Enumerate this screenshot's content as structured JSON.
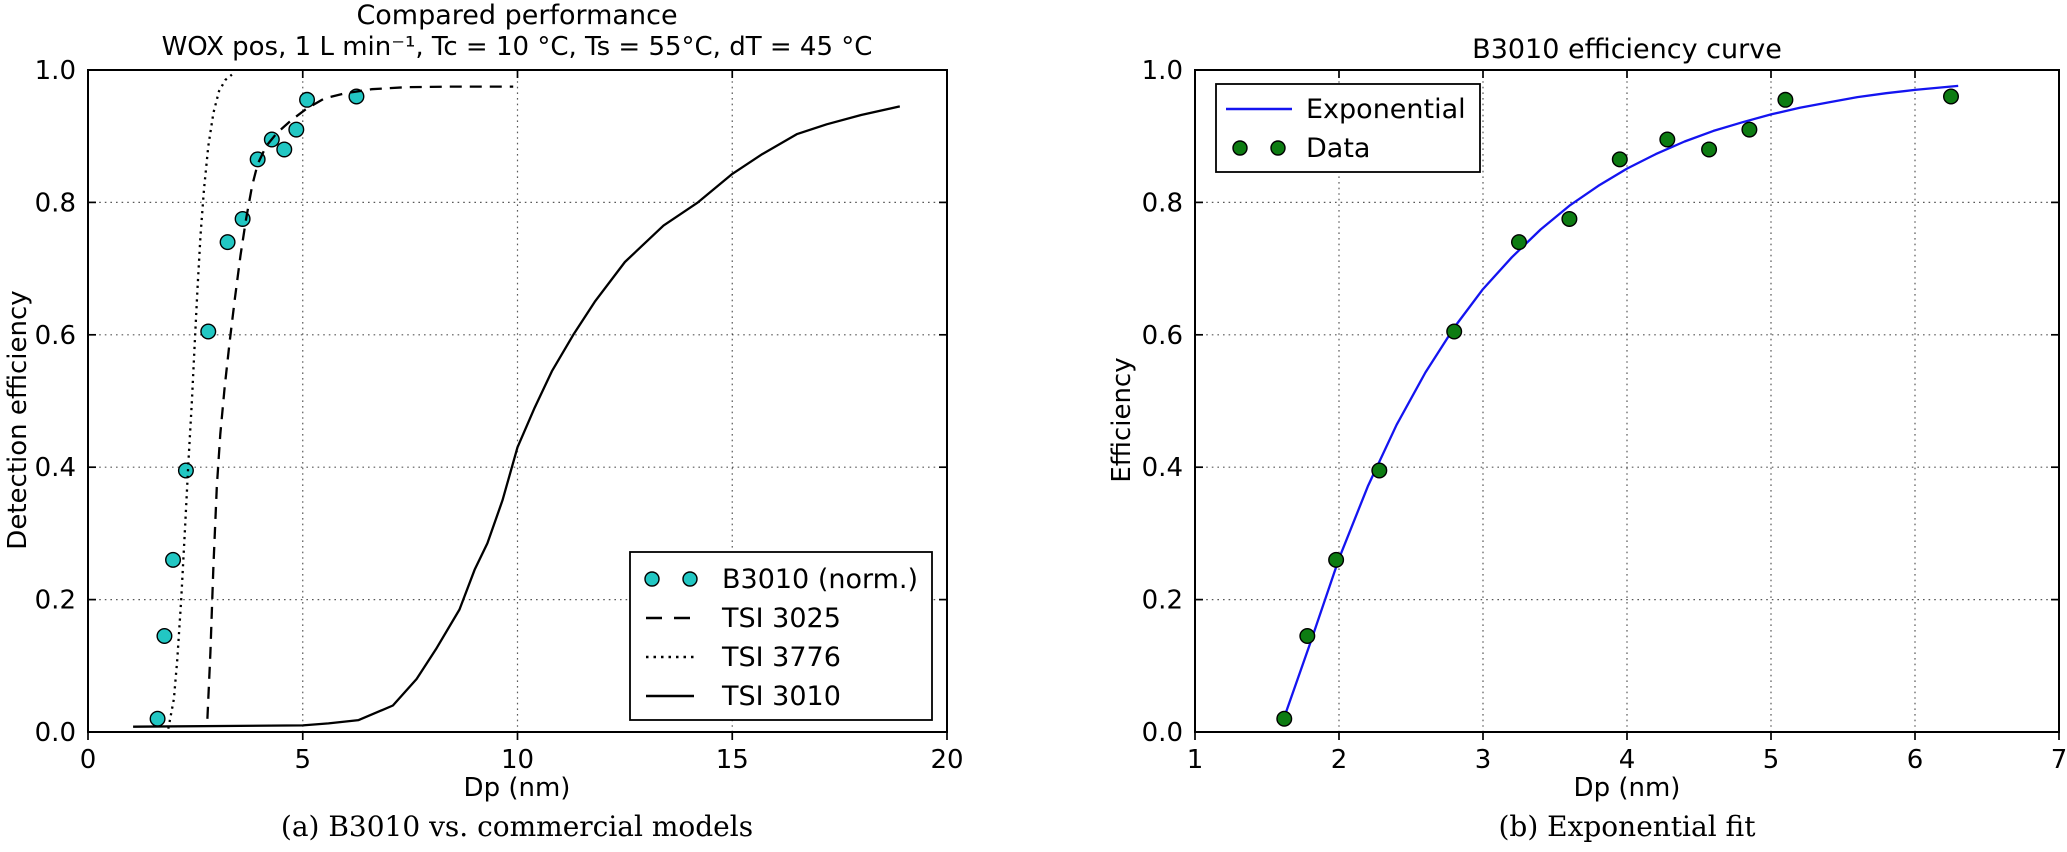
{
  "page": {
    "background": "#ffffff"
  },
  "colors": {
    "cyan": "#22c7c3",
    "green": "#0d7c12",
    "blue": "#1414f0",
    "black": "#000000",
    "grid": "#000000",
    "marker_edge": "#000000",
    "legend_bg": "#ffffff"
  },
  "chart_data": [
    {
      "type": "scatter+line",
      "title": "Compared performance",
      "subtitle": "WOX pos, 1 L min⁻¹, Tc = 10 °C, Ts = 55°C, dT = 45 °C",
      "xlabel": "Dp (nm)",
      "ylabel": "Detection efficiency",
      "caption": "(a) B3010 vs. commercial models",
      "xlim": [
        0,
        20
      ],
      "ylim": [
        0,
        1
      ],
      "xticks": [
        0,
        5,
        10,
        15,
        20
      ],
      "yticks": [
        0.0,
        0.2,
        0.4,
        0.6,
        0.8,
        1.0
      ],
      "xtick_decimals": 0,
      "ytick_decimals": 1,
      "grid": true,
      "legend_position": "lower right",
      "series": [
        {
          "name": "B3010 (norm.)",
          "type": "scatter",
          "color_key": "cyan",
          "x": [
            1.62,
            1.78,
            1.98,
            2.28,
            2.8,
            3.25,
            3.6,
            3.95,
            4.28,
            4.57,
            4.85,
            5.1,
            6.25
          ],
          "y": [
            0.02,
            0.145,
            0.26,
            0.395,
            0.605,
            0.74,
            0.775,
            0.865,
            0.895,
            0.88,
            0.91,
            0.955,
            0.96
          ]
        },
        {
          "name": "TSI 3025",
          "type": "line",
          "linestyle": "dashed",
          "color_key": "black",
          "points": [
            [
              2.78,
              0.02
            ],
            [
              2.85,
              0.12
            ],
            [
              2.92,
              0.25
            ],
            [
              3.0,
              0.37
            ],
            [
              3.08,
              0.45
            ],
            [
              3.18,
              0.52
            ],
            [
              3.3,
              0.59
            ],
            [
              3.42,
              0.655
            ],
            [
              3.55,
              0.72
            ],
            [
              3.68,
              0.775
            ],
            [
              3.82,
              0.825
            ],
            [
              3.95,
              0.858
            ],
            [
              4.15,
              0.885
            ],
            [
              4.4,
              0.905
            ],
            [
              4.75,
              0.925
            ],
            [
              5.1,
              0.942
            ],
            [
              5.5,
              0.957
            ],
            [
              6.0,
              0.965
            ],
            [
              6.6,
              0.971
            ],
            [
              7.4,
              0.974
            ],
            [
              8.5,
              0.975
            ],
            [
              9.9,
              0.975
            ]
          ]
        },
        {
          "name": "TSI 3776",
          "type": "line",
          "linestyle": "dotted",
          "color_key": "black",
          "points": [
            [
              1.87,
              0.005
            ],
            [
              2.0,
              0.05
            ],
            [
              2.08,
              0.11
            ],
            [
              2.17,
              0.2
            ],
            [
              2.26,
              0.31
            ],
            [
              2.34,
              0.41
            ],
            [
              2.42,
              0.5
            ],
            [
              2.48,
              0.58
            ],
            [
              2.55,
              0.67
            ],
            [
              2.62,
              0.75
            ],
            [
              2.7,
              0.82
            ],
            [
              2.8,
              0.885
            ],
            [
              2.92,
              0.935
            ],
            [
              3.05,
              0.968
            ],
            [
              3.2,
              0.985
            ],
            [
              3.35,
              0.993
            ]
          ]
        },
        {
          "name": "TSI 3010",
          "type": "line",
          "linestyle": "solid",
          "color_key": "black",
          "points": [
            [
              1.05,
              0.008
            ],
            [
              5.0,
              0.01
            ],
            [
              5.6,
              0.013
            ],
            [
              6.3,
              0.018
            ],
            [
              7.1,
              0.04
            ],
            [
              7.65,
              0.08
            ],
            [
              8.1,
              0.125
            ],
            [
              8.65,
              0.185
            ],
            [
              9.0,
              0.245
            ],
            [
              9.3,
              0.285
            ],
            [
              9.65,
              0.35
            ],
            [
              10.0,
              0.43
            ],
            [
              10.4,
              0.49
            ],
            [
              10.8,
              0.545
            ],
            [
              11.3,
              0.6
            ],
            [
              11.8,
              0.65
            ],
            [
              12.5,
              0.71
            ],
            [
              13.4,
              0.765
            ],
            [
              14.2,
              0.8
            ],
            [
              15.0,
              0.843
            ],
            [
              15.7,
              0.873
            ],
            [
              16.5,
              0.903
            ],
            [
              17.2,
              0.918
            ],
            [
              18.0,
              0.932
            ],
            [
              18.9,
              0.945
            ]
          ]
        }
      ]
    },
    {
      "type": "scatter+line",
      "title": "B3010 efficiency curve",
      "xlabel": "Dp (nm)",
      "ylabel": "Efficiency",
      "caption": "(b) Exponential fit",
      "xlim": [
        1,
        7
      ],
      "ylim": [
        0,
        1
      ],
      "xticks": [
        1,
        2,
        3,
        4,
        5,
        6,
        7
      ],
      "yticks": [
        0.0,
        0.2,
        0.4,
        0.6,
        0.8,
        1.0
      ],
      "xtick_decimals": 0,
      "ytick_decimals": 1,
      "grid": true,
      "legend_position": "upper left",
      "series": [
        {
          "name": "Exponential",
          "type": "line",
          "linestyle": "solid",
          "color_key": "blue",
          "points": [
            [
              1.6,
              0.01
            ],
            [
              1.8,
              0.134
            ],
            [
              2.0,
              0.262
            ],
            [
              2.2,
              0.371
            ],
            [
              2.4,
              0.464
            ],
            [
              2.6,
              0.543
            ],
            [
              2.8,
              0.611
            ],
            [
              3.0,
              0.669
            ],
            [
              3.2,
              0.717
            ],
            [
              3.4,
              0.759
            ],
            [
              3.6,
              0.795
            ],
            [
              3.8,
              0.825
            ],
            [
              4.0,
              0.851
            ],
            [
              4.2,
              0.873
            ],
            [
              4.4,
              0.892
            ],
            [
              4.6,
              0.908
            ],
            [
              4.8,
              0.921
            ],
            [
              5.0,
              0.933
            ],
            [
              5.2,
              0.943
            ],
            [
              5.4,
              0.951
            ],
            [
              5.6,
              0.959
            ],
            [
              5.8,
              0.965
            ],
            [
              6.0,
              0.97
            ],
            [
              6.3,
              0.976
            ]
          ]
        },
        {
          "name": "Data",
          "type": "scatter",
          "color_key": "green",
          "x": [
            1.62,
            1.78,
            1.98,
            2.28,
            2.8,
            3.25,
            3.6,
            3.95,
            4.28,
            4.57,
            4.85,
            5.1,
            6.25
          ],
          "y": [
            0.02,
            0.145,
            0.26,
            0.395,
            0.605,
            0.74,
            0.775,
            0.865,
            0.895,
            0.88,
            0.91,
            0.955,
            0.96
          ]
        }
      ]
    }
  ]
}
